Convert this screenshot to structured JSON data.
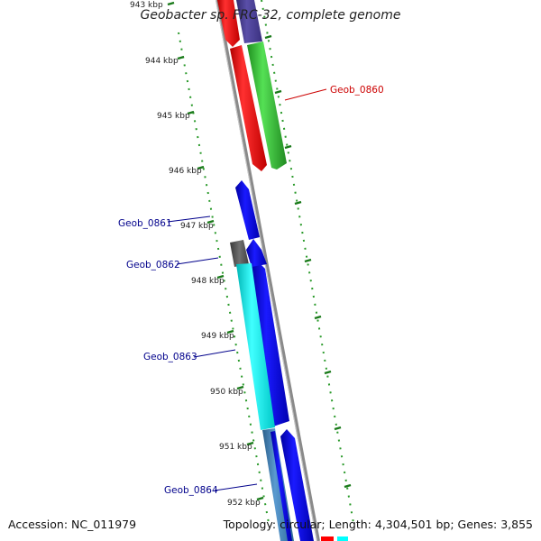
{
  "title": "Geobacter sp. FRC-32, complete genome",
  "accession": "Accession: NC_011979",
  "summary": "Topology: circular; Length: 4,304,501 bp; Genes: 3,855",
  "tick_labels": [
    "943 kbp",
    "944 kbp",
    "945 kbp",
    "946 kbp",
    "947 kbp",
    "948 kbp",
    "949 kbp",
    "950 kbp",
    "951 kbp",
    "952 kbp"
  ],
  "gene_labels": [
    "Geob_0860",
    "Geob_0861",
    "Geob_0862",
    "Geob_0863",
    "Geob_0864"
  ],
  "colors": {
    "red": "#ff0000",
    "green": "#33cc33",
    "slate": "#4a3f8f",
    "blue": "#0000ee",
    "cyan": "#00ffff",
    "grey": "#555555",
    "steel": "#3d7ab0",
    "backbone": "#888888",
    "tick": "#1a7a1a",
    "dot": "#2a9a2a",
    "label_red": "#cc0000",
    "label_blue": "#00008b"
  }
}
